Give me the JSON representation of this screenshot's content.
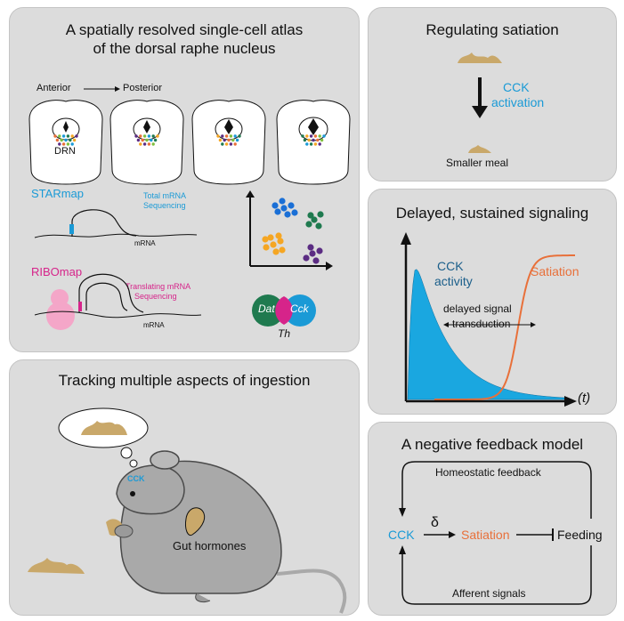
{
  "colors": {
    "panel_bg": "#dcdcdc",
    "cck_blue": "#1a9ad6",
    "satiation_orange": "#e8703a",
    "ribomap_pink": "#d6248a",
    "food_tan": "#c9a86a",
    "mouse_gray": "#a9a9a9",
    "dat_green": "#1f7a4f"
  },
  "atlas": {
    "title_line1": "A spatially resolved single-cell atlas",
    "title_line2": "of the dorsal raphe nucleus",
    "axis_anterior": "Anterior",
    "axis_posterior": "Posterior",
    "drn_label": "DRN",
    "starmap_name": "STARmap",
    "starmap_desc_line1": "Total mRNA",
    "starmap_desc_line2": "Sequencing",
    "mrna_label": "mRNA",
    "ribomap_name": "RIBOmap",
    "ribomap_desc_line1": "Translating mRNA",
    "ribomap_desc_line2": "Sequencing",
    "venn_left": "Dat",
    "venn_right": "Cck",
    "venn_bottom": "Th"
  },
  "satiation": {
    "title": "Regulating satiation",
    "arrow_label_line1": "CCK",
    "arrow_label_line2": "activation",
    "caption": "Smaller meal"
  },
  "signaling": {
    "title": "Delayed, sustained signaling",
    "cck_label_line1": "CCK",
    "cck_label_line2": "activity",
    "satiation_label": "Satiation",
    "delay_label_line1": "delayed signal",
    "delay_label_line2": "transduction",
    "time_label": "(t)"
  },
  "ingestion": {
    "title": "Tracking multiple aspects of ingestion",
    "brain_label": "CCK",
    "gut_label": "Gut hormones"
  },
  "feedback": {
    "title": "A negative feedback model",
    "top_label": "Homeostatic feedback",
    "bottom_label": "Afferent signals",
    "node_cck": "CCK",
    "delta": "δ",
    "node_satiation": "Satiation",
    "node_feeding": "Feeding"
  }
}
